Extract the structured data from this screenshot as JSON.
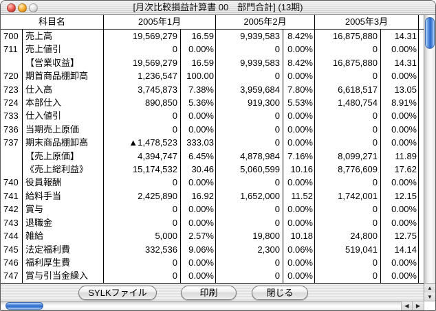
{
  "window": {
    "title": "[月次比較損益計算書 00　部門合計]  (13期)"
  },
  "table": {
    "headers": {
      "account": "科目名",
      "months": [
        "2005年1月",
        "2005年2月",
        "2005年3月"
      ]
    },
    "rows": [
      {
        "code": "700",
        "name": "売上高",
        "values": [
          "19,569,279",
          "16.59",
          "9,939,583",
          "8.42%",
          "16,875,880",
          "14.31"
        ]
      },
      {
        "code": "711",
        "name": "売上値引",
        "values": [
          "0",
          "0.00%",
          "0",
          "0.00%",
          "0",
          "0.00%"
        ]
      },
      {
        "code": "",
        "name": "【営業収益】",
        "values": [
          "19,569,279",
          "16.59",
          "9,939,583",
          "8.42%",
          "16,875,880",
          "14.31"
        ]
      },
      {
        "code": "720",
        "name": "期首商品棚卸高",
        "values": [
          "1,236,547",
          "100.00",
          "0",
          "0.00%",
          "0",
          "0.00%"
        ]
      },
      {
        "code": "723",
        "name": "仕入高",
        "values": [
          "3,745,873",
          "7.38%",
          "3,959,684",
          "7.80%",
          "6,618,517",
          "13.05"
        ]
      },
      {
        "code": "724",
        "name": "本部仕入",
        "values": [
          "890,850",
          "5.36%",
          "919,300",
          "5.53%",
          "1,480,754",
          "8.91%"
        ]
      },
      {
        "code": "733",
        "name": "仕入値引",
        "values": [
          "0",
          "0.00%",
          "0",
          "0.00%",
          "0",
          "0.00%"
        ]
      },
      {
        "code": "736",
        "name": "当期売上原価",
        "values": [
          "0",
          "0.00%",
          "0",
          "0.00%",
          "0",
          "0.00%"
        ]
      },
      {
        "code": "737",
        "name": "期末商品棚卸高",
        "values": [
          "▲1,478,523",
          "333.03",
          "0",
          "0.00%",
          "0",
          "0.00%"
        ]
      },
      {
        "code": "",
        "name": "【売上原価】",
        "values": [
          "4,394,747",
          "6.45%",
          "4,878,984",
          "7.16%",
          "8,099,271",
          "11.89"
        ]
      },
      {
        "code": "",
        "name": "《売上総利益》",
        "values": [
          "15,174,532",
          "30.46",
          "5,060,599",
          "10.16",
          "8,776,609",
          "17.62"
        ]
      },
      {
        "code": "740",
        "name": "役員報酬",
        "values": [
          "0",
          "0.00%",
          "0",
          "0.00%",
          "0",
          "0.00%"
        ]
      },
      {
        "code": "741",
        "name": "給料手当",
        "values": [
          "2,425,890",
          "16.92",
          "1,652,000",
          "11.52",
          "1,742,001",
          "12.15"
        ]
      },
      {
        "code": "742",
        "name": "賞与",
        "values": [
          "0",
          "0.00%",
          "0",
          "0.00%",
          "0",
          "0.00%"
        ]
      },
      {
        "code": "743",
        "name": "退職金",
        "values": [
          "0",
          "0.00%",
          "0",
          "0.00%",
          "0",
          "0.00%"
        ]
      },
      {
        "code": "744",
        "name": "雑給",
        "values": [
          "5,000",
          "2.57%",
          "19,800",
          "10.18",
          "24,800",
          "12.75"
        ]
      },
      {
        "code": "745",
        "name": "法定福利費",
        "values": [
          "332,536",
          "9.06%",
          "2,300",
          "0.06%",
          "519,041",
          "14.14"
        ]
      },
      {
        "code": "746",
        "name": "福利厚生費",
        "values": [
          "0",
          "0.00%",
          "0",
          "0.00%",
          "0",
          "0.00%"
        ]
      },
      {
        "code": "747",
        "name": "賞与引当金繰入",
        "values": [
          "0",
          "0.00%",
          "0",
          "0.00%",
          "0",
          "0.00%"
        ]
      }
    ]
  },
  "buttons": {
    "sylk": "SYLKファイル",
    "print": "印刷",
    "close": "閉じる"
  },
  "scrollbar": {
    "up_glyph": "▲",
    "down_glyph": "▼",
    "left_glyph": "◀",
    "right_glyph": "▶"
  },
  "colors": {
    "thumb_blue": "#2a66c8",
    "table_line": "#000000",
    "titlebar_gray": "#d7d7d7"
  }
}
